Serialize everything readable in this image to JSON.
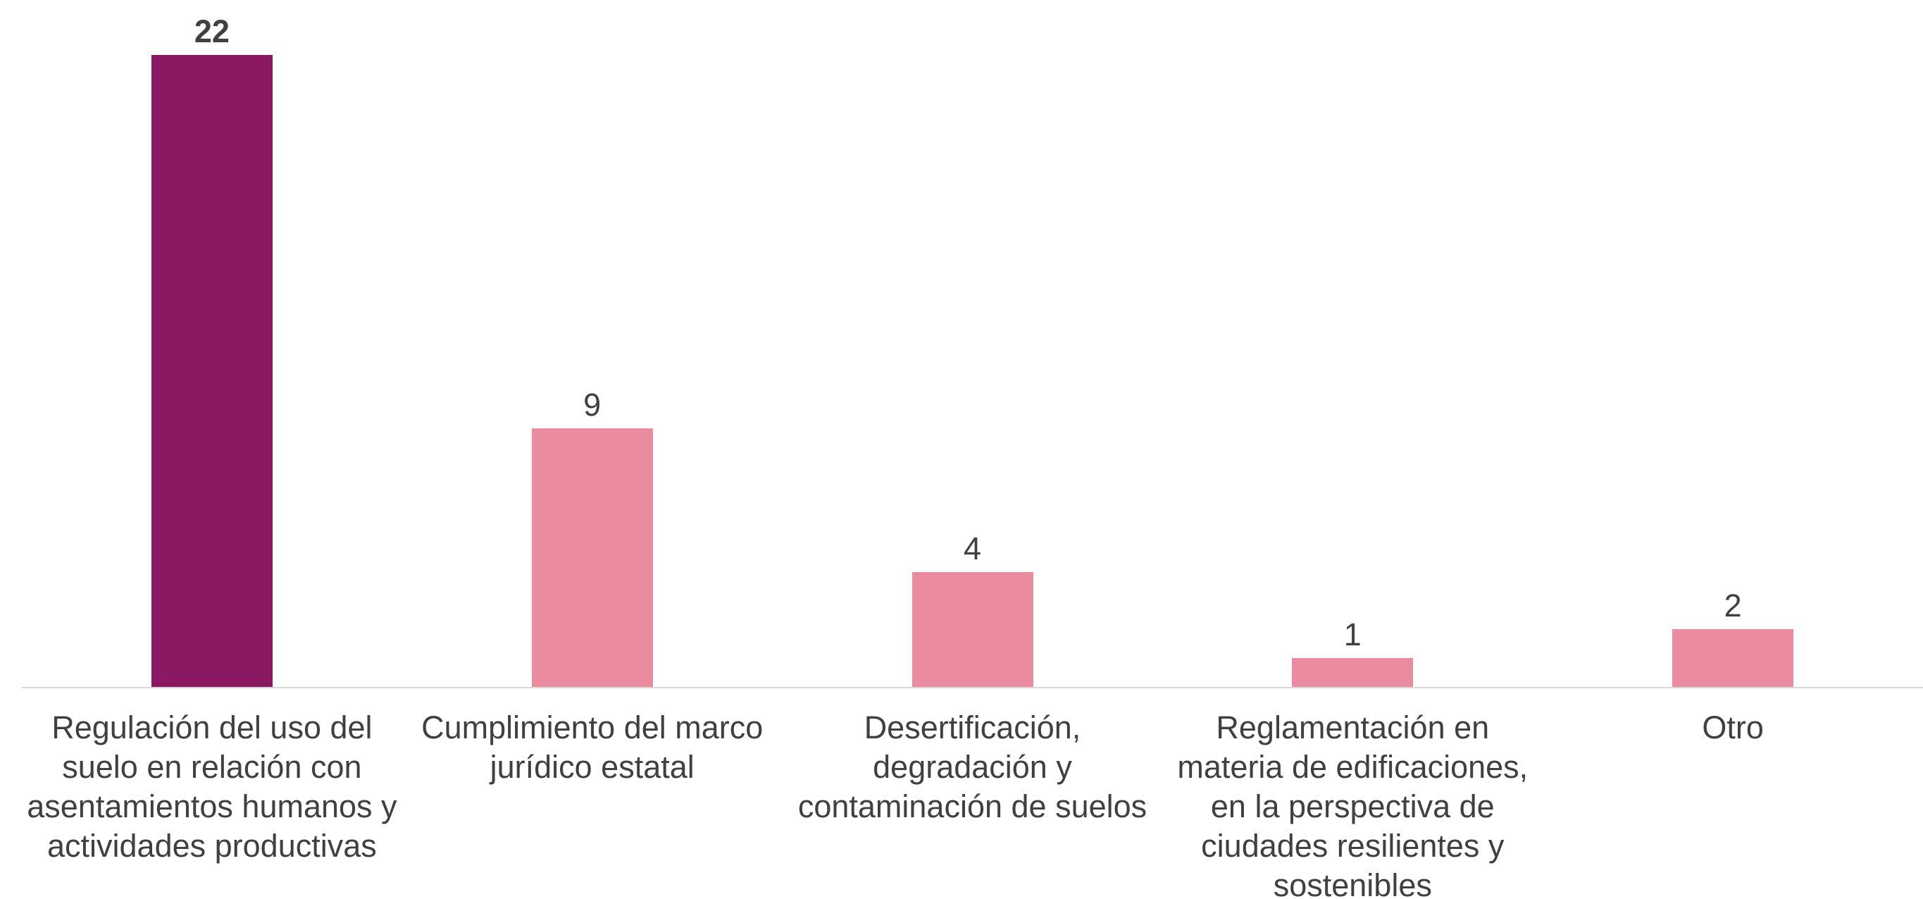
{
  "chart_data": {
    "type": "bar",
    "categories": [
      "Regulación del uso del suelo en relación con asentamientos humanos y actividades productivas",
      "Cumplimiento del marco jurídico estatal",
      "Desertificación, degradación y contaminación de suelos",
      "Reglamentación en materia de edificaciones, en la perspectiva de ciudades resilientes y sostenibles",
      "Otro"
    ],
    "values": [
      22,
      9,
      4,
      1,
      2
    ],
    "colors": [
      "#8b1862",
      "#eb8ba0",
      "#eb8ba0",
      "#eb8ba0",
      "#eb8ba0"
    ],
    "highlight_index": 0,
    "grid": false
  }
}
